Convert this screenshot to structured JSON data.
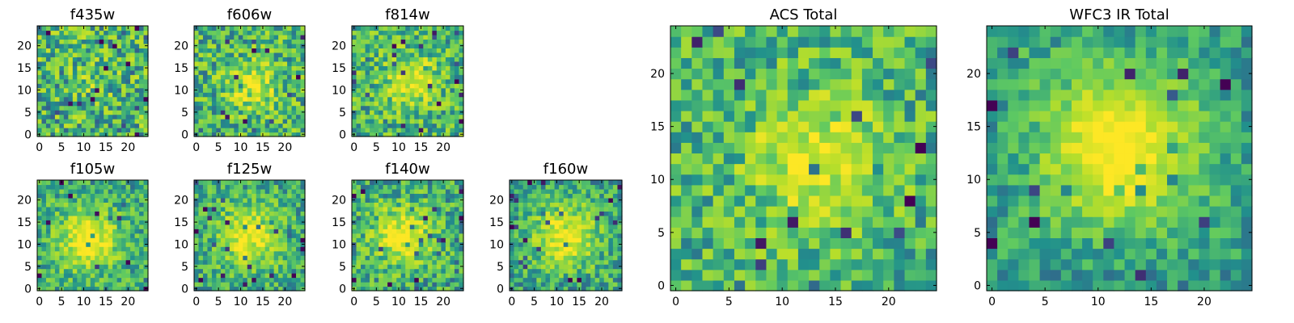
{
  "palette": [
    "#440154",
    "#3b528b",
    "#21918c",
    "#5ec962",
    "#b5de2b",
    "#fde725"
  ],
  "chart_data": [
    {
      "type": "heatmap",
      "title": "f435w",
      "grid": 25,
      "x_ticks": [
        "0",
        "5",
        "10",
        "15",
        "20"
      ],
      "y_ticks": [
        "0",
        "5",
        "10",
        "15",
        "20"
      ],
      "xlim": [
        0,
        25
      ],
      "ylim": [
        0,
        25
      ],
      "center": [
        12,
        12
      ],
      "peak": 0.15,
      "noise": 0.62,
      "seed": 11,
      "edge_dark": 0.0
    },
    {
      "type": "heatmap",
      "title": "f606w",
      "grid": 25,
      "x_ticks": [
        "0",
        "5",
        "10",
        "15",
        "20"
      ],
      "y_ticks": [
        "0",
        "5",
        "10",
        "15",
        "20"
      ],
      "xlim": [
        0,
        25
      ],
      "ylim": [
        0,
        25
      ],
      "center": [
        13,
        11
      ],
      "peak": 0.45,
      "noise": 0.55,
      "seed": 23,
      "edge_dark": 0.0
    },
    {
      "type": "heatmap",
      "title": "f814w",
      "grid": 25,
      "x_ticks": [
        "0",
        "5",
        "10",
        "15",
        "20"
      ],
      "y_ticks": [
        "0",
        "5",
        "10",
        "15",
        "20"
      ],
      "xlim": [
        0,
        25
      ],
      "ylim": [
        0,
        25
      ],
      "center": [
        13,
        12
      ],
      "peak": 0.5,
      "noise": 0.52,
      "seed": 37,
      "edge_dark": 0.0
    },
    {
      "type": "heatmap",
      "title": "f105w",
      "grid": 25,
      "x_ticks": [
        "0",
        "5",
        "10",
        "15",
        "20"
      ],
      "y_ticks": [
        "0",
        "5",
        "10",
        "15",
        "20"
      ],
      "xlim": [
        0,
        25
      ],
      "ylim": [
        0,
        25
      ],
      "center": [
        11,
        11
      ],
      "peak": 0.65,
      "noise": 0.42,
      "seed": 41,
      "edge_dark": 0.15
    },
    {
      "type": "heatmap",
      "title": "f125w",
      "grid": 25,
      "x_ticks": [
        "0",
        "5",
        "10",
        "15",
        "20"
      ],
      "y_ticks": [
        "0",
        "5",
        "10",
        "15",
        "20"
      ],
      "xlim": [
        0,
        25
      ],
      "ylim": [
        0,
        25
      ],
      "center": [
        12,
        12
      ],
      "peak": 0.6,
      "noise": 0.42,
      "seed": 53,
      "edge_dark": 0.15
    },
    {
      "type": "heatmap",
      "title": "f140w",
      "grid": 25,
      "x_ticks": [
        "0",
        "5",
        "10",
        "15",
        "20"
      ],
      "y_ticks": [
        "0",
        "5",
        "10",
        "15",
        "20"
      ],
      "xlim": [
        0,
        25
      ],
      "ylim": [
        0,
        25
      ],
      "center": [
        11,
        12
      ],
      "peak": 0.6,
      "noise": 0.48,
      "seed": 67,
      "edge_dark": 0.15
    },
    {
      "type": "heatmap",
      "title": "f160w",
      "grid": 25,
      "x_ticks": [
        "0",
        "5",
        "10",
        "15",
        "20"
      ],
      "y_ticks": [
        "0",
        "5",
        "10",
        "15",
        "20"
      ],
      "xlim": [
        0,
        25
      ],
      "ylim": [
        0,
        25
      ],
      "center": [
        12,
        12
      ],
      "peak": 0.6,
      "noise": 0.42,
      "seed": 79,
      "edge_dark": 0.2
    },
    {
      "type": "heatmap",
      "title": "ACS Total",
      "grid": 25,
      "x_ticks": [
        "0",
        "5",
        "10",
        "15",
        "20"
      ],
      "y_ticks": [
        "0",
        "5",
        "10",
        "15",
        "20"
      ],
      "xlim": [
        0,
        25
      ],
      "ylim": [
        0,
        25
      ],
      "center": [
        13,
        12
      ],
      "peak": 0.55,
      "noise": 0.48,
      "seed": 97,
      "edge_dark": 0.0
    },
    {
      "type": "heatmap",
      "title": "WFC3 IR Total",
      "grid": 25,
      "x_ticks": [
        "0",
        "5",
        "10",
        "15",
        "20"
      ],
      "y_ticks": [
        "0",
        "5",
        "10",
        "15",
        "20"
      ],
      "xlim": [
        0,
        25
      ],
      "ylim": [
        0,
        25
      ],
      "center": [
        12,
        13
      ],
      "peak": 0.75,
      "noise": 0.3,
      "seed": 113,
      "edge_dark": 0.3
    }
  ]
}
